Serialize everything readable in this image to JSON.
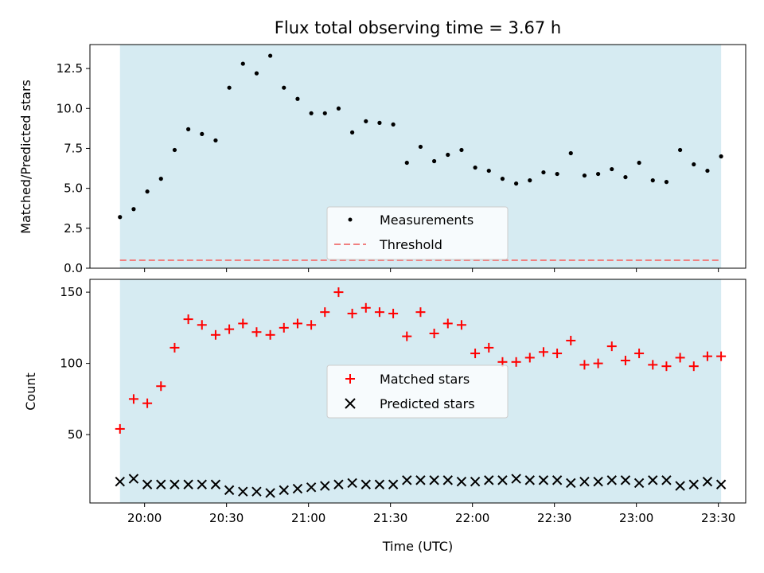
{
  "chart_data": [
    {
      "type": "scatter",
      "title": "Flux total observing time = 3.67 h",
      "xlabel": "",
      "ylabel": "Matched/Predicted stars",
      "xlim": [
        "19:40",
        "23:40"
      ],
      "ylim": [
        0,
        14
      ],
      "yticks": [
        "0.0",
        "2.5",
        "5.0",
        "7.5",
        "10.0",
        "12.5"
      ],
      "ytick_values": [
        0,
        2.5,
        5,
        7.5,
        10,
        12.5
      ],
      "xticks": [
        "20:00",
        "20:30",
        "21:00",
        "21:30",
        "22:00",
        "22:30",
        "23:00",
        "23:30"
      ],
      "shaded_span": [
        "19:51",
        "23:31"
      ],
      "shade_color": "#add8e6",
      "legend_position": "lower center",
      "series": [
        {
          "name": "Measurements",
          "marker": "dot",
          "color": "#000000",
          "x": [
            "19:51",
            "19:56",
            "20:01",
            "20:06",
            "20:11",
            "20:16",
            "20:21",
            "20:26",
            "20:31",
            "20:36",
            "20:41",
            "20:46",
            "20:51",
            "20:56",
            "21:01",
            "21:06",
            "21:11",
            "21:16",
            "21:21",
            "21:26",
            "21:31",
            "21:36",
            "21:41",
            "21:46",
            "21:51",
            "21:56",
            "22:01",
            "22:06",
            "22:11",
            "22:16",
            "22:21",
            "22:26",
            "22:31",
            "22:36",
            "22:41",
            "22:46",
            "22:51",
            "22:56",
            "23:01",
            "23:06",
            "23:11",
            "23:16",
            "23:21",
            "23:26",
            "23:31"
          ],
          "y": [
            3.2,
            3.7,
            4.8,
            5.6,
            7.4,
            8.7,
            8.4,
            8.0,
            11.3,
            12.8,
            12.2,
            13.3,
            11.3,
            10.6,
            9.7,
            9.7,
            10.0,
            8.5,
            9.2,
            9.1,
            9.0,
            6.6,
            7.6,
            6.7,
            7.1,
            7.4,
            6.3,
            6.1,
            5.6,
            5.3,
            5.5,
            6.0,
            5.9,
            7.2,
            5.8,
            5.9,
            6.2,
            5.7,
            6.6,
            5.5,
            5.4,
            7.4,
            6.5,
            6.1,
            7.0
          ]
        },
        {
          "name": "Threshold",
          "marker": "dashed-line",
          "color": "#f08080",
          "y": 0.5
        }
      ]
    },
    {
      "type": "scatter",
      "title": "",
      "xlabel": "Time (UTC)",
      "ylabel": "Count",
      "xlim": [
        "19:40",
        "23:40"
      ],
      "ylim": [
        2,
        159
      ],
      "yticks": [
        "50",
        "100",
        "150"
      ],
      "ytick_values": [
        50,
        100,
        150
      ],
      "xticks": [
        "20:00",
        "20:30",
        "21:00",
        "21:30",
        "22:00",
        "22:30",
        "23:00",
        "23:30"
      ],
      "shaded_span": [
        "19:51",
        "23:31"
      ],
      "shade_color": "#add8e6",
      "legend_position": "center",
      "series": [
        {
          "name": "Matched stars",
          "marker": "plus",
          "color": "#ff0000",
          "x": [
            "19:51",
            "19:56",
            "20:01",
            "20:06",
            "20:11",
            "20:16",
            "20:21",
            "20:26",
            "20:31",
            "20:36",
            "20:41",
            "20:46",
            "20:51",
            "20:56",
            "21:01",
            "21:06",
            "21:11",
            "21:16",
            "21:21",
            "21:26",
            "21:31",
            "21:36",
            "21:41",
            "21:46",
            "21:51",
            "21:56",
            "22:01",
            "22:06",
            "22:11",
            "22:16",
            "22:21",
            "22:26",
            "22:31",
            "22:36",
            "22:41",
            "22:46",
            "22:51",
            "22:56",
            "23:01",
            "23:06",
            "23:11",
            "23:16",
            "23:21",
            "23:26",
            "23:31"
          ],
          "y": [
            54,
            75,
            72,
            84,
            111,
            131,
            127,
            120,
            124,
            128,
            122,
            120,
            125,
            128,
            127,
            136,
            150,
            135,
            139,
            136,
            135,
            119,
            136,
            121,
            128,
            127,
            107,
            111,
            101,
            101,
            104,
            108,
            107,
            116,
            99,
            100,
            112,
            102,
            107,
            99,
            98,
            104,
            98,
            105,
            105
          ]
        },
        {
          "name": "Predicted stars",
          "marker": "x",
          "color": "#000000",
          "x": [
            "19:51",
            "19:56",
            "20:01",
            "20:06",
            "20:11",
            "20:16",
            "20:21",
            "20:26",
            "20:31",
            "20:36",
            "20:41",
            "20:46",
            "20:51",
            "20:56",
            "21:01",
            "21:06",
            "21:11",
            "21:16",
            "21:21",
            "21:26",
            "21:31",
            "21:36",
            "21:41",
            "21:46",
            "21:51",
            "21:56",
            "22:01",
            "22:06",
            "22:11",
            "22:16",
            "22:21",
            "22:26",
            "22:31",
            "22:36",
            "22:41",
            "22:46",
            "22:51",
            "22:56",
            "23:01",
            "23:06",
            "23:11",
            "23:16",
            "23:21",
            "23:26",
            "23:31"
          ],
          "y": [
            17,
            19,
            15,
            15,
            15,
            15,
            15,
            15,
            11,
            10,
            10,
            9,
            11,
            12,
            13,
            14,
            15,
            16,
            15,
            15,
            15,
            18,
            18,
            18,
            18,
            17,
            17,
            18,
            18,
            19,
            18,
            18,
            18,
            16,
            17,
            17,
            18,
            18,
            16,
            18,
            18,
            14,
            15,
            17,
            15
          ]
        }
      ]
    }
  ]
}
